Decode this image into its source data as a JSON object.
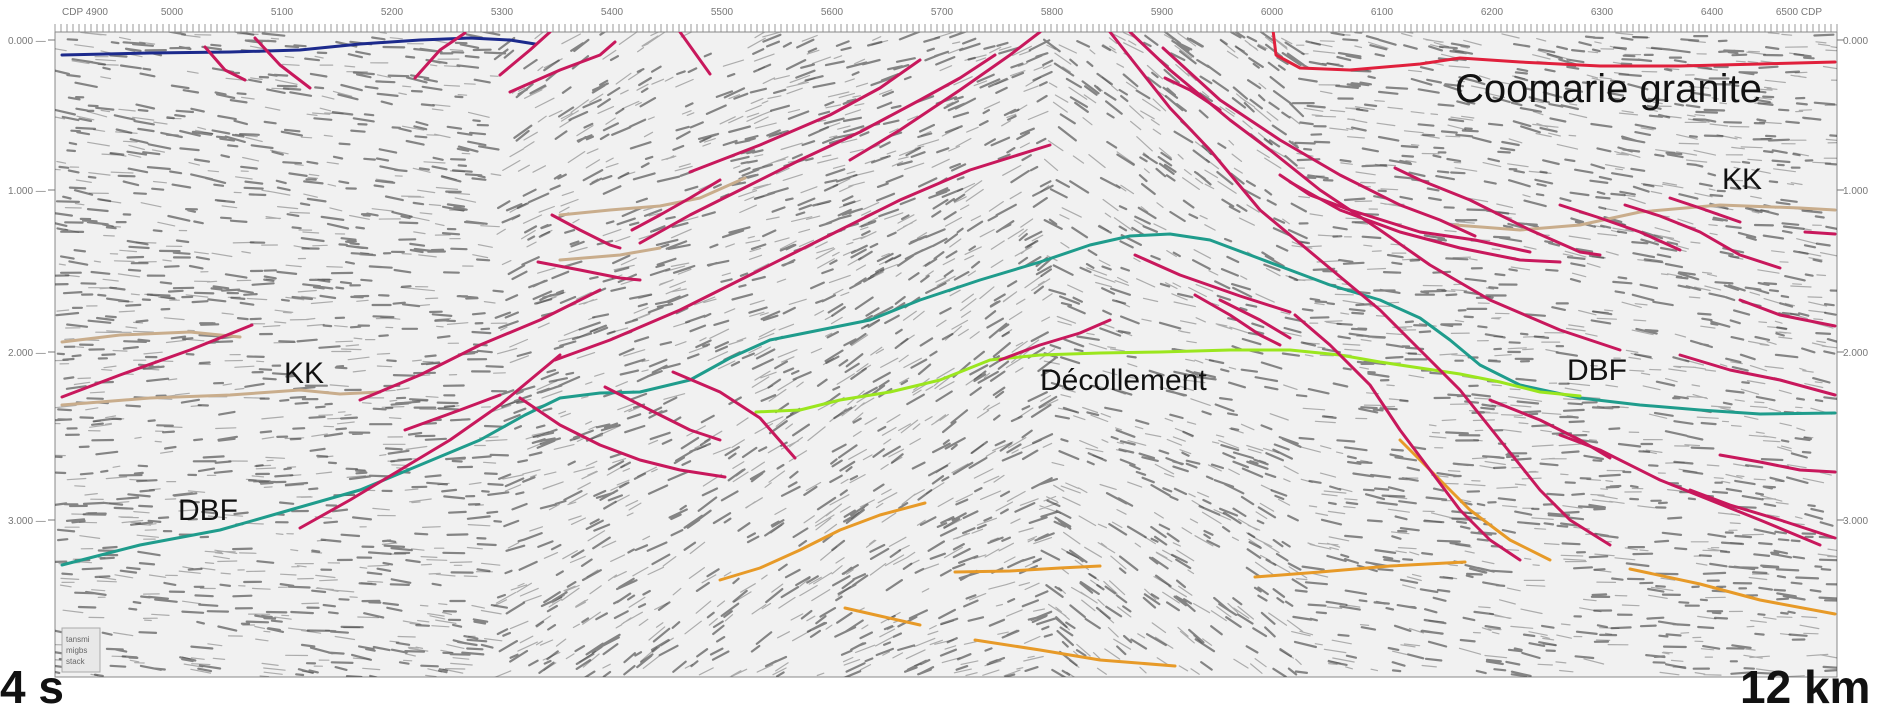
{
  "section": {
    "colors": {
      "fault": "#c8185c",
      "kk_horizon": "#c9ad8c",
      "dbf_horizon": "#1f9c8c",
      "decollement": "#9be61e",
      "coomarie_base_left": "#1c2a8c",
      "coomarie_base_right": "#e0203c",
      "deep_reflector": "#e79a28",
      "seismic_ink": "#2a2a2a"
    },
    "axis": {
      "cdp_prefix": "CDP",
      "cdp_ticks": [
        "4900",
        "5000",
        "5100",
        "5200",
        "5300",
        "5400",
        "5500",
        "5600",
        "5700",
        "5800",
        "5900",
        "6000",
        "6100",
        "6200",
        "6300",
        "6400",
        "6500"
      ],
      "time_ticks": [
        "0.000",
        "1.000",
        "2.000",
        "3.000"
      ],
      "time_unit": "s",
      "time_extent": "4 s",
      "distance_extent": "12 km"
    },
    "annotations": {
      "coomarie": "Coomarie granite",
      "kk_right": "KK",
      "kk_left": "KK",
      "dbf_right": "DBF",
      "dbf_left": "DBF",
      "decollement": "Décollement"
    },
    "stamp_lines": [
      "tansmi",
      "migbs",
      "stack"
    ]
  }
}
